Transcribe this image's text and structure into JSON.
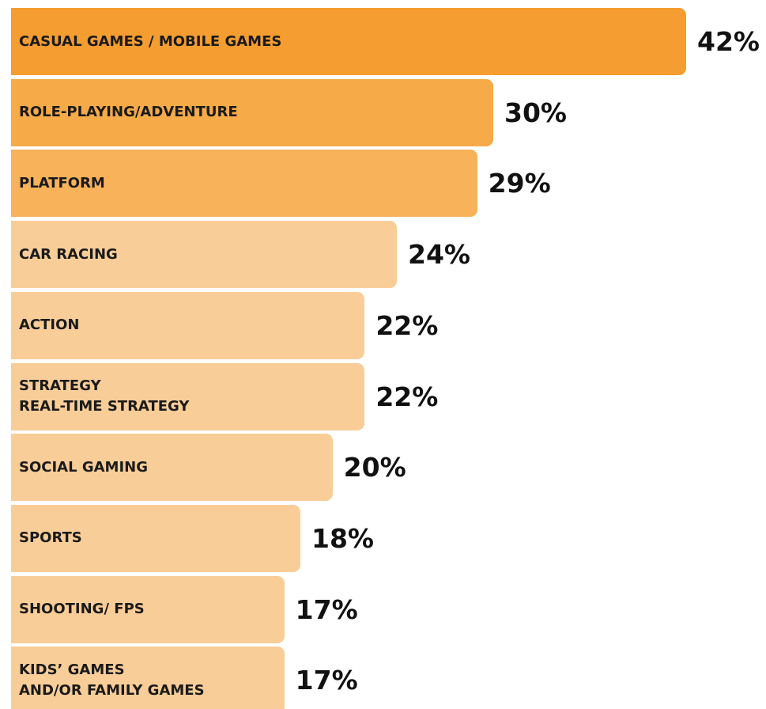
{
  "chart_data": {
    "type": "bar",
    "orientation": "horizontal",
    "categories": [
      "CASUAL GAMES / MOBILE GAMES",
      "ROLE-PLAYING/ADVENTURE",
      "PLATFORM",
      "CAR RACING",
      "ACTION",
      "STRATEGY\nREAL-TIME STRATEGY",
      "SOCIAL GAMING",
      "SPORTS",
      "SHOOTING/ FPS",
      "KIDS’ GAMES\nAND/OR FAMILY GAMES"
    ],
    "values": [
      42,
      30,
      29,
      24,
      22,
      22,
      20,
      18,
      17,
      17
    ],
    "value_labels": [
      "42%",
      "30%",
      "29%",
      "24%",
      "22%",
      "22%",
      "20%",
      "18%",
      "17%",
      "17%"
    ],
    "colors": [
      "#f59d30",
      "#f6aa48",
      "#f7b25a",
      "#f9cd98",
      "#f9cd98",
      "#f9cd98",
      "#f9cd98",
      "#f9cd98",
      "#f9cd98",
      "#f9cd98"
    ],
    "xlim": [
      0,
      42
    ]
  }
}
